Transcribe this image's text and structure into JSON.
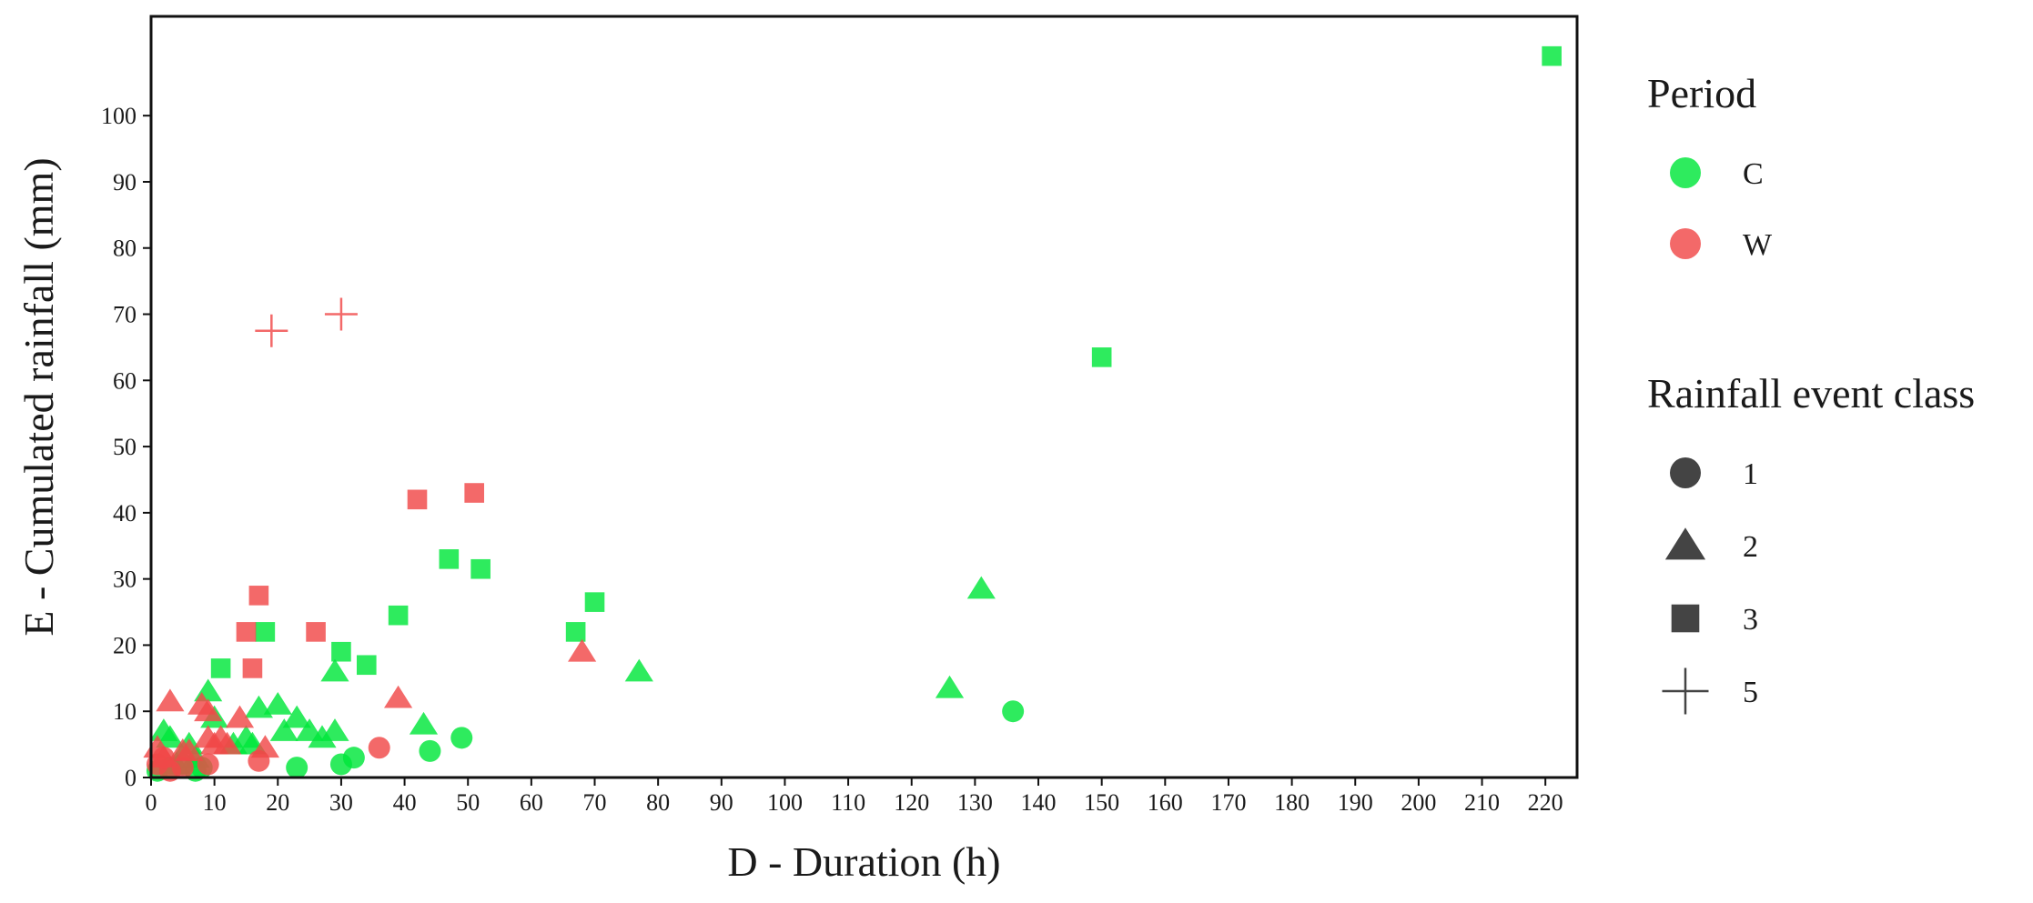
{
  "chart_data": {
    "type": "scatter",
    "xlabel": "D - Duration (h)",
    "ylabel": "E - Cumulated rainfall (mm)",
    "xlim": [
      0,
      225
    ],
    "ylim": [
      0,
      115
    ],
    "xticks": [
      0,
      10,
      20,
      30,
      40,
      50,
      60,
      70,
      80,
      90,
      100,
      110,
      120,
      130,
      140,
      150,
      160,
      170,
      180,
      190,
      200,
      210,
      220
    ],
    "yticks": [
      0,
      10,
      20,
      30,
      40,
      50,
      60,
      70,
      80,
      90,
      100
    ],
    "grid": false,
    "legend_position": "right",
    "colors": {
      "C": "#00e63a",
      "W": "#f04848",
      "legend_shape": "#444444"
    },
    "legend": {
      "period_title": "Period",
      "period_items": [
        {
          "key": "C",
          "label": "C"
        },
        {
          "key": "W",
          "label": "W"
        }
      ],
      "class_title": "Rainfall event class",
      "class_items": [
        {
          "class": "1",
          "shape": "circle",
          "label": "1"
        },
        {
          "class": "2",
          "shape": "triangle",
          "label": "2"
        },
        {
          "class": "3",
          "shape": "square",
          "label": "3"
        },
        {
          "class": "5",
          "shape": "plus",
          "label": "5"
        }
      ]
    },
    "series": [
      {
        "period": "C",
        "class": "1",
        "shape": "circle",
        "points": [
          [
            1,
            1
          ],
          [
            3,
            1.5
          ],
          [
            5,
            2
          ],
          [
            7,
            1
          ],
          [
            8,
            1.5
          ],
          [
            23,
            1.5
          ],
          [
            30,
            2
          ],
          [
            32,
            3
          ],
          [
            44,
            4
          ],
          [
            49,
            6
          ],
          [
            136,
            10
          ]
        ]
      },
      {
        "period": "C",
        "class": "2",
        "shape": "triangle",
        "points": [
          [
            2,
            7
          ],
          [
            3,
            6
          ],
          [
            4,
            2
          ],
          [
            6,
            5
          ],
          [
            7,
            3
          ],
          [
            9,
            13
          ],
          [
            10,
            9
          ],
          [
            13,
            5
          ],
          [
            15,
            6
          ],
          [
            16,
            5
          ],
          [
            17,
            10.5
          ],
          [
            20,
            11
          ],
          [
            21,
            7
          ],
          [
            23,
            9
          ],
          [
            25,
            7
          ],
          [
            27,
            6
          ],
          [
            29,
            7
          ],
          [
            29,
            16
          ],
          [
            43,
            8
          ],
          [
            77,
            16
          ],
          [
            126,
            13.5
          ],
          [
            131,
            28.5
          ]
        ]
      },
      {
        "period": "C",
        "class": "3",
        "shape": "square",
        "points": [
          [
            11,
            16.5
          ],
          [
            18,
            22
          ],
          [
            30,
            19
          ],
          [
            34,
            17
          ],
          [
            39,
            24.5
          ],
          [
            47,
            33
          ],
          [
            52,
            31.5
          ],
          [
            67,
            22
          ],
          [
            70,
            26.5
          ],
          [
            150,
            63.5
          ],
          [
            221,
            109
          ]
        ]
      },
      {
        "period": "W",
        "class": "1",
        "shape": "circle",
        "points": [
          [
            1,
            2
          ],
          [
            2,
            3
          ],
          [
            3,
            1
          ],
          [
            5,
            1.5
          ],
          [
            9,
            2
          ],
          [
            17,
            2.5
          ],
          [
            36,
            4.5
          ]
        ]
      },
      {
        "period": "W",
        "class": "2",
        "shape": "triangle",
        "points": [
          [
            1,
            4.5
          ],
          [
            2,
            3
          ],
          [
            3,
            11.5
          ],
          [
            5,
            4
          ],
          [
            6,
            4
          ],
          [
            8,
            11
          ],
          [
            9,
            10
          ],
          [
            9,
            6
          ],
          [
            10,
            5
          ],
          [
            11,
            6
          ],
          [
            12,
            5
          ],
          [
            14,
            9
          ],
          [
            18,
            4.5
          ],
          [
            39,
            12
          ],
          [
            68,
            19
          ]
        ]
      },
      {
        "period": "W",
        "class": "3",
        "shape": "square",
        "points": [
          [
            15,
            22
          ],
          [
            16,
            16.5
          ],
          [
            17,
            27.5
          ],
          [
            26,
            22
          ],
          [
            42,
            42
          ],
          [
            51,
            43
          ]
        ]
      },
      {
        "period": "W",
        "class": "5",
        "shape": "plus",
        "points": [
          [
            19,
            67.5
          ],
          [
            30,
            70
          ]
        ]
      }
    ]
  }
}
